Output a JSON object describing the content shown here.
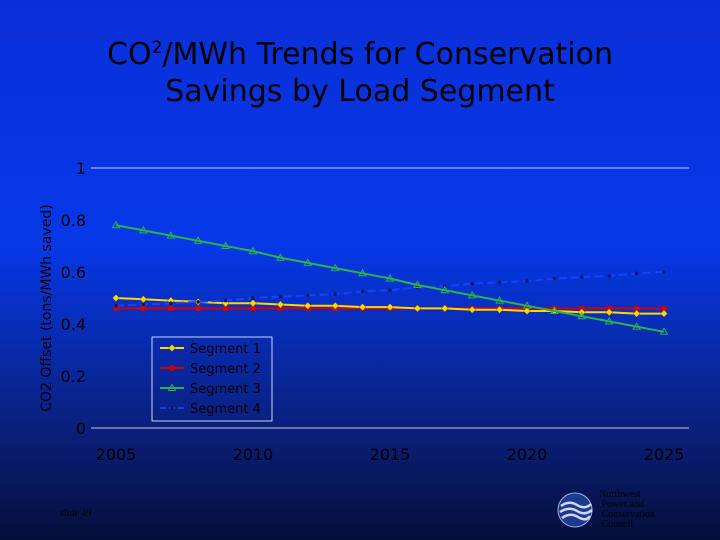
{
  "title": {
    "line1_pre": "CO",
    "line1_sup": "2",
    "line1_post": "/MWh Trends for Conservation",
    "line2": "Savings by Load Segment"
  },
  "footer": {
    "slide_label": "slide 49",
    "logo_text": "Northwest\n Power and\n Conservation\n Council",
    "logo_icon": "swirl-logo-icon"
  },
  "colors": {
    "background": "#0638e8",
    "axis_text": "#000000",
    "segment1": "#ffd800",
    "segment2": "#d40000",
    "segment3": "#2bb24a",
    "segment4": "#1a3fff"
  },
  "chart_data": {
    "type": "line",
    "ylabel": "CO2 Offset (tons/MWh saved)",
    "xlabel": "",
    "xlim": [
      2005,
      2025
    ],
    "ylim": [
      0,
      1
    ],
    "x_ticks": [
      "2005",
      "2010",
      "2015",
      "2020",
      "2025"
    ],
    "y_ticks": [
      "0",
      "0.2",
      "0.4",
      "0.6",
      "0.8",
      "1"
    ],
    "grid": false,
    "legend_position": "lower-left",
    "x": [
      2005,
      2006,
      2007,
      2008,
      2009,
      2010,
      2011,
      2012,
      2013,
      2014,
      2015,
      2016,
      2017,
      2018,
      2019,
      2020,
      2021,
      2022,
      2023,
      2024,
      2025
    ],
    "series": [
      {
        "name": "Segment 1",
        "marker": "diamond",
        "values": [
          0.5,
          0.495,
          0.49,
          0.485,
          0.48,
          0.48,
          0.475,
          0.47,
          0.47,
          0.465,
          0.465,
          0.46,
          0.46,
          0.455,
          0.455,
          0.45,
          0.45,
          0.445,
          0.445,
          0.44,
          0.44
        ]
      },
      {
        "name": "Segment 2",
        "marker": "square",
        "values": [
          0.46,
          0.46,
          0.46,
          0.46,
          0.46,
          0.46,
          0.46,
          0.46,
          0.46,
          0.46,
          0.46,
          0.46,
          0.46,
          0.46,
          0.46,
          0.46,
          0.46,
          0.46,
          0.46,
          0.46,
          0.46
        ]
      },
      {
        "name": "Segment 3",
        "marker": "triangle",
        "values": [
          0.78,
          0.76,
          0.74,
          0.72,
          0.7,
          0.68,
          0.655,
          0.635,
          0.615,
          0.595,
          0.575,
          0.55,
          0.53,
          0.51,
          0.49,
          0.47,
          0.45,
          0.43,
          0.41,
          0.39,
          0.37
        ]
      },
      {
        "name": "Segment 4",
        "marker": "dot",
        "dashed": true,
        "values": [
          0.47,
          0.475,
          0.48,
          0.485,
          0.49,
          0.5,
          0.505,
          0.51,
          0.515,
          0.525,
          0.53,
          0.54,
          0.545,
          0.555,
          0.56,
          0.565,
          0.575,
          0.58,
          0.585,
          0.595,
          0.6
        ]
      }
    ]
  }
}
